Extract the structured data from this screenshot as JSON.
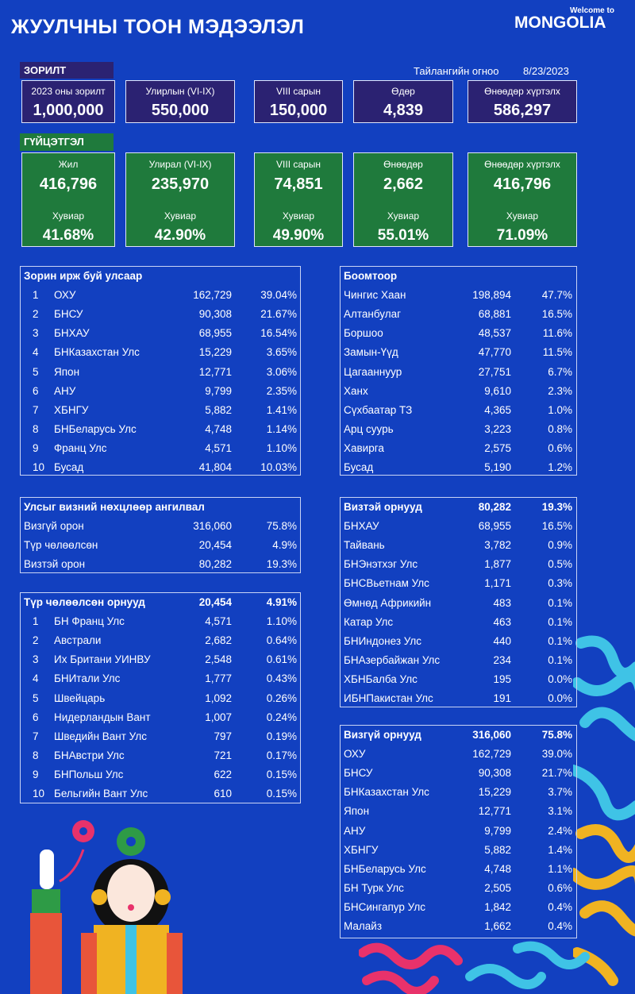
{
  "header": {
    "title": "ЖУУЛЧНЫ ТООН МЭДЭЭЛЭЛ",
    "brand_top": "Welcome to",
    "brand": "MONGOLIA"
  },
  "report": {
    "label": "Тайлангийн огноо",
    "date": "8/23/2023"
  },
  "targets": {
    "heading": "ЗОРИЛТ",
    "cards": [
      {
        "label": "2023 оны зорилт",
        "value": "1,000,000"
      },
      {
        "label": "Улирлын (VI-IX)",
        "value": "550,000"
      },
      {
        "label": "VIII сарын",
        "value": "150,000"
      },
      {
        "label": "Өдөр",
        "value": "4,839"
      },
      {
        "label": "Өнөөдөр хүртэлх",
        "value": "586,297"
      }
    ]
  },
  "performance": {
    "heading": "ГҮЙЦЭТГЭЛ",
    "cards": [
      {
        "label": "Жил",
        "value": "416,796",
        "pct_label": "Хувиар",
        "pct": "41.68%"
      },
      {
        "label": "Улирал (VI-IX)",
        "value": "235,970",
        "pct_label": "Хувиар",
        "pct": "42.90%"
      },
      {
        "label": "VIII сарын",
        "value": "74,851",
        "pct_label": "Хувиар",
        "pct": "49.90%"
      },
      {
        "label": "Өнөөдөр",
        "value": "2,662",
        "pct_label": "Хувиар",
        "pct": "55.01%"
      },
      {
        "label": "Өнөөдөр хүртэлх",
        "value": "416,796",
        "pct_label": "Хувиар",
        "pct": "71.09%"
      }
    ]
  },
  "countries": {
    "header": [
      "Зорин ирж буй улсаар"
    ],
    "rows": [
      [
        "1",
        "ОХУ",
        "162,729",
        "39.04%"
      ],
      [
        "2",
        "БНСУ",
        "90,308",
        "21.67%"
      ],
      [
        "3",
        "БНХАУ",
        "68,955",
        "16.54%"
      ],
      [
        "4",
        "БНКазахстан Улс",
        "15,229",
        "3.65%"
      ],
      [
        "5",
        "Япон",
        "12,771",
        "3.06%"
      ],
      [
        "6",
        "АНУ",
        "9,799",
        "2.35%"
      ],
      [
        "7",
        "ХБНГУ",
        "5,882",
        "1.41%"
      ],
      [
        "8",
        "БНБеларусь Улс",
        "4,748",
        "1.14%"
      ],
      [
        "9",
        "Франц Улс",
        "4,571",
        "1.10%"
      ],
      [
        "10",
        "Бусад",
        "41,804",
        "10.03%"
      ]
    ]
  },
  "ports": {
    "header": [
      "Боомтоор"
    ],
    "rows": [
      [
        "Чингис Хаан",
        "198,894",
        "47.7%"
      ],
      [
        "Алтанбулаг",
        "68,881",
        "16.5%"
      ],
      [
        "Боршоо",
        "48,537",
        "11.6%"
      ],
      [
        "Замын-Үүд",
        "47,770",
        "11.5%"
      ],
      [
        "Цагааннуур",
        "27,751",
        "6.7%"
      ],
      [
        "Ханх",
        "9,610",
        "2.3%"
      ],
      [
        "Сүхбаатар ТЗ",
        "4,365",
        "1.0%"
      ],
      [
        "Арц суурь",
        "3,223",
        "0.8%"
      ],
      [
        "Хавирга",
        "2,575",
        "0.6%"
      ],
      [
        "Бусад",
        "5,190",
        "1.2%"
      ]
    ]
  },
  "visa_class": {
    "header": [
      "Улсыг визний нөхцлөөр ангилвал"
    ],
    "rows": [
      [
        "Визгүй орон",
        "316,060",
        "75.8%"
      ],
      [
        "Түр чөлөөлсөн",
        "20,454",
        "4.9%"
      ],
      [
        "Визтэй орон",
        "80,282",
        "19.3%"
      ]
    ]
  },
  "temp_exempt": {
    "header": [
      "Түр чөлөөлсөн орнууд",
      "20,454",
      "4.91%"
    ],
    "rows": [
      [
        "1",
        "БН Франц Улс",
        "4,571",
        "1.10%"
      ],
      [
        "2",
        "Австрали",
        "2,682",
        "0.64%"
      ],
      [
        "3",
        "Их Британи УИНВУ",
        "2,548",
        "0.61%"
      ],
      [
        "4",
        "БНИтали Улс",
        "1,777",
        "0.43%"
      ],
      [
        "5",
        "Швейцарь",
        "1,092",
        "0.26%"
      ],
      [
        "6",
        "Нидерландын Вант",
        "1,007",
        "0.24%"
      ],
      [
        "7",
        "Шведийн Вант Улс",
        "797",
        "0.19%"
      ],
      [
        "8",
        "БНАвстри Улс",
        "721",
        "0.17%"
      ],
      [
        "9",
        "БНПольш Улс",
        "622",
        "0.15%"
      ],
      [
        "10",
        "Бельгийн Вант Улс",
        "610",
        "0.15%"
      ]
    ]
  },
  "visa_required": {
    "header": [
      "Визтэй орнууд",
      "80,282",
      "19.3%"
    ],
    "rows": [
      [
        "БНХАУ",
        "68,955",
        "16.5%"
      ],
      [
        "Тайвань",
        "3,782",
        "0.9%"
      ],
      [
        "БНЭнэтхэг Улс",
        "1,877",
        "0.5%"
      ],
      [
        "БНСВьетнам Улс",
        "1,171",
        "0.3%"
      ],
      [
        "Өмнөд Африкийн",
        "483",
        "0.1%"
      ],
      [
        "Катар Улс",
        "463",
        "0.1%"
      ],
      [
        "БНИндонез Улс",
        "440",
        "0.1%"
      ],
      [
        "БНАзербайжан Улс",
        "234",
        "0.1%"
      ],
      [
        "ХБНБалба Улс",
        "195",
        "0.0%"
      ],
      [
        "ИБНПакистан Улс",
        "191",
        "0.0%"
      ]
    ]
  },
  "visa_free": {
    "header": [
      "Визгүй орнууд",
      "316,060",
      "75.8%"
    ],
    "rows": [
      [
        "ОХУ",
        "162,729",
        "39.0%"
      ],
      [
        "БНСУ",
        "90,308",
        "21.7%"
      ],
      [
        "БНКазахстан Улс",
        "15,229",
        "3.7%"
      ],
      [
        "Япон",
        "12,771",
        "3.1%"
      ],
      [
        "АНУ",
        "9,799",
        "2.4%"
      ],
      [
        "ХБНГУ",
        "5,882",
        "1.4%"
      ],
      [
        "БНБеларусь Улс",
        "4,748",
        "1.1%"
      ],
      [
        "БН Турк Улс",
        "2,505",
        "0.6%"
      ],
      [
        "БНСингапур Улс",
        "1,842",
        "0.4%"
      ],
      [
        "Малайз",
        "1,662",
        "0.4%"
      ]
    ]
  }
}
